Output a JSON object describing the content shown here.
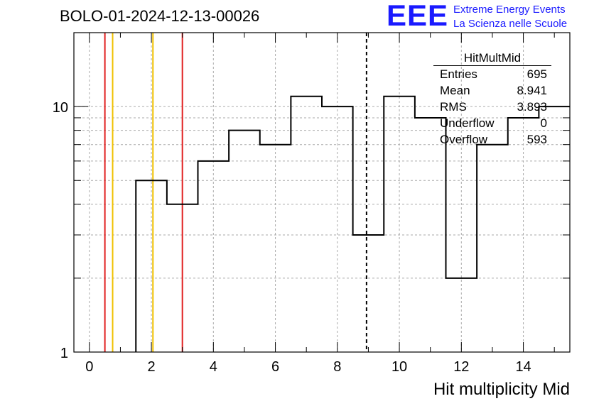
{
  "title": "BOLO-01-2024-12-13-00026",
  "logo": {
    "mark": "EEE",
    "line1": "Extreme Energy Events",
    "line2": "La Scienza nelle Scuole"
  },
  "stats_box": {
    "name": "HitMultMid",
    "rows": [
      {
        "label": "Entries",
        "value": "695"
      },
      {
        "label": "Mean",
        "value": "8.941"
      },
      {
        "label": "RMS",
        "value": "3.893"
      },
      {
        "label": "Underflow",
        "value": "0"
      },
      {
        "label": "Overflow",
        "value": "593"
      }
    ]
  },
  "chart_data": {
    "type": "histogram",
    "title": "BOLO-01-2024-12-13-00026",
    "xlabel": "Hit multiplicity Mid",
    "ylabel": "",
    "xlim": [
      -0.5,
      15.5
    ],
    "ylim": [
      1,
      20
    ],
    "yscale": "log",
    "grid": true,
    "x_ticks": [
      0,
      2,
      4,
      6,
      8,
      10,
      12,
      14
    ],
    "y_ticks": [
      1,
      10
    ],
    "bin_edges": [
      -0.5,
      0.5,
      1.5,
      2.5,
      3.5,
      4.5,
      5.5,
      6.5,
      7.5,
      8.5,
      9.5,
      10.5,
      11.5,
      12.5,
      13.5,
      14.5,
      15.5
    ],
    "counts": [
      0,
      0,
      5,
      4,
      6,
      8,
      7,
      11,
      10,
      3,
      11,
      9,
      2,
      7,
      9,
      10
    ],
    "vertical_lines": [
      {
        "x": 0.5,
        "color": "#e02020",
        "style": "solid"
      },
      {
        "x": 0.75,
        "color": "#f0c000",
        "style": "solid"
      },
      {
        "x": 2.05,
        "color": "#f0c000",
        "style": "solid"
      },
      {
        "x": 3.0,
        "color": "#e02020",
        "style": "solid"
      },
      {
        "x": 8.941,
        "color": "#000000",
        "style": "dashed"
      }
    ],
    "line_color": "#000000",
    "grid_color": "#aaaaaa"
  }
}
